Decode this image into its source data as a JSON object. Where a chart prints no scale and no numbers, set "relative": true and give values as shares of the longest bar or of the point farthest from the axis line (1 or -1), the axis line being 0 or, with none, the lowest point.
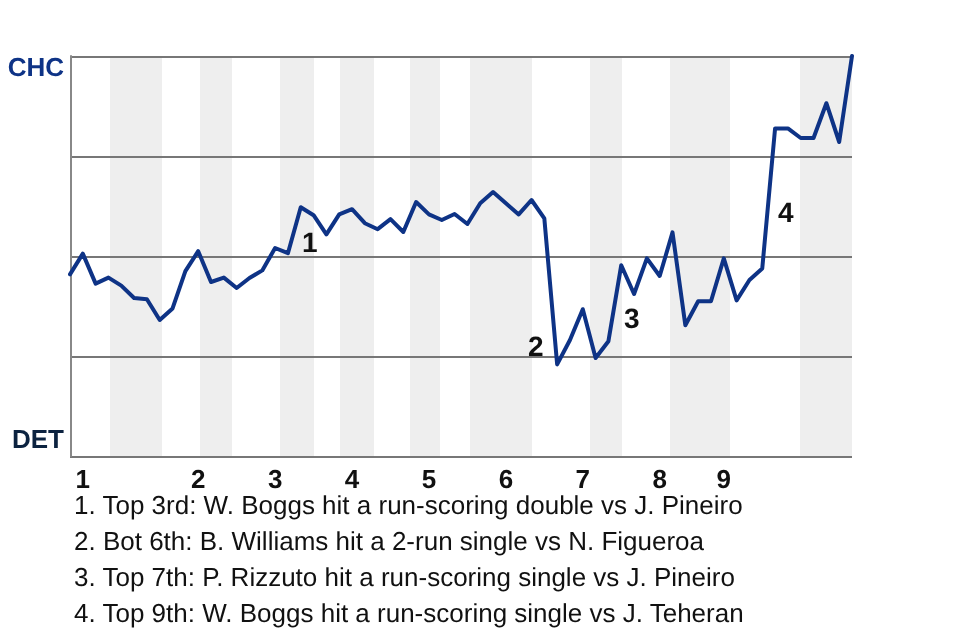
{
  "chart_data": {
    "type": "line",
    "relative": true,
    "categories": [
      null,
      "1",
      null,
      null,
      null,
      null,
      null,
      null,
      null,
      null,
      "2",
      null,
      null,
      null,
      null,
      null,
      "3",
      null,
      null,
      null,
      null,
      null,
      "4",
      null,
      null,
      null,
      null,
      null,
      "5",
      null,
      null,
      null,
      null,
      null,
      "6",
      null,
      null,
      null,
      null,
      null,
      "7",
      null,
      null,
      null,
      null,
      null,
      "8",
      null,
      null,
      null,
      null,
      "9",
      null,
      null,
      null,
      null,
      null,
      null,
      null,
      null,
      null,
      null
    ],
    "series": [
      {
        "color": "#0e3386",
        "values": [
          0.454,
          0.506,
          0.431,
          0.446,
          0.426,
          0.395,
          0.392,
          0.34,
          0.369,
          0.462,
          0.512,
          0.435,
          0.446,
          0.42,
          0.445,
          0.464,
          0.52,
          0.507,
          0.622,
          0.602,
          0.554,
          0.604,
          0.617,
          0.582,
          0.567,
          0.592,
          0.56,
          0.635,
          0.604,
          0.59,
          0.605,
          0.58,
          0.632,
          0.66,
          0.632,
          0.604,
          0.64,
          0.594,
          0.229,
          0.29,
          0.367,
          0.245,
          0.287,
          0.477,
          0.405,
          0.494,
          0.45,
          0.559,
          0.327,
          0.387,
          0.387,
          0.494,
          0.389,
          0.44,
          0.469,
          0.819,
          0.819,
          0.795,
          0.795,
          0.882,
          0.785,
          1
        ]
      }
    ],
    "grid": "y",
    "marker": "none",
    "line_style": "solid",
    "annotations": [
      "CHC",
      "DET",
      "1",
      "2",
      "3",
      "4",
      "1. Top 3rd: W. Boggs hit a run-scoring double vs J. Pineiro",
      "2. Bot 6th: B. Williams hit a 2-run single vs N. Figueroa",
      "3. Top 7th: P. Rizzuto hit a run-scoring single vs J. Pineiro",
      "4. Top 9th: W. Boggs hit a run-scoring single vs J. Teheran"
    ]
  }
}
